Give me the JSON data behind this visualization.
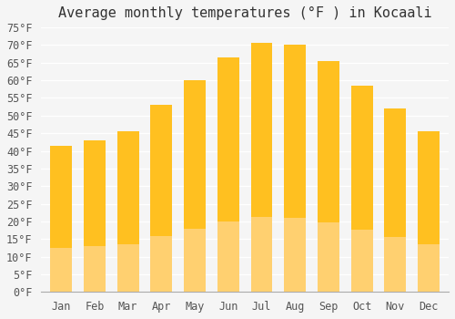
{
  "title": "Average monthly temperatures (°F ) in Kocaali",
  "months": [
    "Jan",
    "Feb",
    "Mar",
    "Apr",
    "May",
    "Jun",
    "Jul",
    "Aug",
    "Sep",
    "Oct",
    "Nov",
    "Dec"
  ],
  "values": [
    41.5,
    43.0,
    45.5,
    53.0,
    60.0,
    66.5,
    70.5,
    70.0,
    65.5,
    58.5,
    52.0,
    45.5
  ],
  "bar_color_top": "#FFC020",
  "bar_color_bottom": "#FFD070",
  "ylim": [
    0,
    75
  ],
  "yticks": [
    0,
    5,
    10,
    15,
    20,
    25,
    30,
    35,
    40,
    45,
    50,
    55,
    60,
    65,
    70,
    75
  ],
  "ytick_labels": [
    "0°F",
    "5°F",
    "10°F",
    "15°F",
    "20°F",
    "25°F",
    "30°F",
    "35°F",
    "40°F",
    "45°F",
    "50°F",
    "55°F",
    "60°F",
    "65°F",
    "70°F",
    "75°F"
  ],
  "background_color": "#f5f5f5",
  "grid_color": "#ffffff",
  "title_fontsize": 11,
  "tick_fontsize": 8.5
}
